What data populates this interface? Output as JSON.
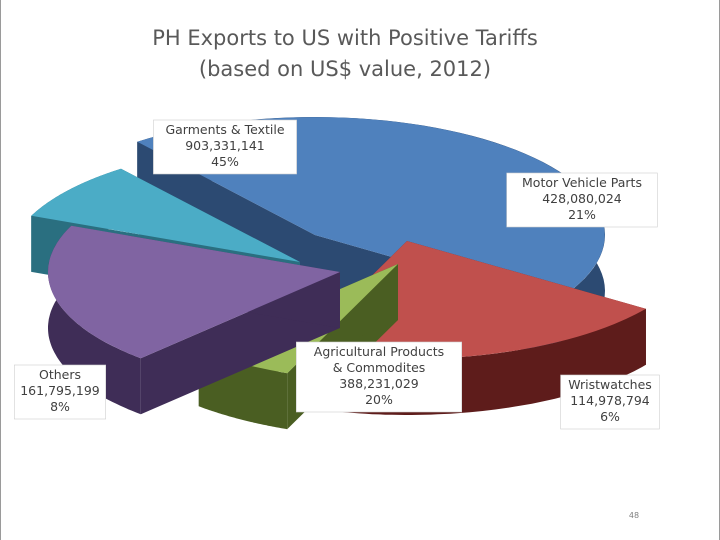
{
  "chart_data": {
    "type": "pie",
    "title": "PH Exports to US with Positive Tariffs",
    "subtitle": "(based on US$ value, 2012)",
    "categories": [
      "Garments & Textile",
      "Motor Vehicle Parts",
      "Wristwatches",
      "Agricultural Products & Commodites",
      "Others"
    ],
    "series": [
      {
        "values": [
          903331141,
          428080024,
          114978794,
          388231029,
          161795199
        ]
      }
    ],
    "slices": [
      {
        "name": "Garments & Textile",
        "label_lines": [
          "Garments & Textile"
        ],
        "value_text": "903,331,141",
        "percent": "45%",
        "color": "#4f81bd",
        "side_color": "#2c4a72"
      },
      {
        "name": "Motor Vehicle Parts",
        "label_lines": [
          "Motor Vehicle Parts"
        ],
        "value_text": "428,080,024",
        "percent": "21%",
        "color": "#c0504d",
        "side_color": "#5e1c1b"
      },
      {
        "name": "Wristwatches",
        "label_lines": [
          "Wristwatches"
        ],
        "value_text": "114,978,794",
        "percent": "6%",
        "color": "#9bbb59",
        "side_color": "#4a5e22"
      },
      {
        "name": "Agricultural Products & Commodites",
        "label_lines": [
          "Agricultural Products",
          "& Commodites"
        ],
        "value_text": "388,231,029",
        "percent": "20%",
        "color": "#8064a2",
        "side_color": "#3f2d57"
      },
      {
        "name": "Others",
        "label_lines": [
          "Others"
        ],
        "value_text": "161,795,199",
        "percent": "8%",
        "color": "#4bacc6",
        "side_color": "#2a6f80"
      }
    ],
    "legend": "none"
  },
  "page_number": "48"
}
